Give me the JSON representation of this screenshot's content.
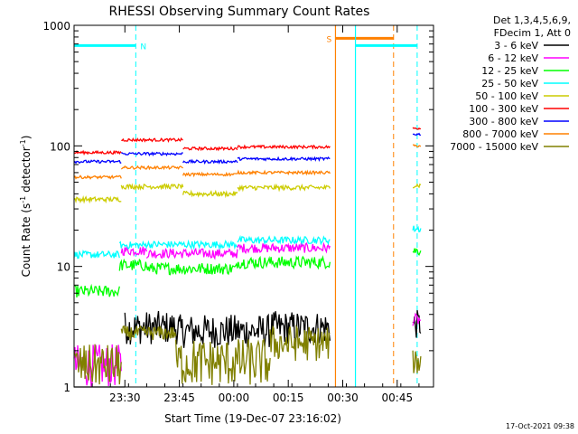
{
  "chart_data": {
    "type": "line",
    "title": "RHESSI Observing Summary Count Rates",
    "xlabel": "Start Time (19-Dec-07 23:16:02)",
    "ylabel_prefix": "Count Rate (s",
    "ylabel_sup1": "-1",
    "ylabel_mid": " detector",
    "ylabel_sup2": "-1",
    "ylabel_suffix": ")",
    "ylog": true,
    "ylim": [
      1,
      1000
    ],
    "xlim_minutes": [
      0,
      99
    ],
    "x_ticks": [
      {
        "min": 14,
        "label": "23:30"
      },
      {
        "min": 29,
        "label": "23:45"
      },
      {
        "min": 44,
        "label": "00:00"
      },
      {
        "min": 59,
        "label": "00:15"
      },
      {
        "min": 74,
        "label": "00:30"
      },
      {
        "min": 89,
        "label": "00:45"
      }
    ],
    "y_ticks": [
      {
        "v": 1,
        "label": "1"
      },
      {
        "v": 10,
        "label": "10"
      },
      {
        "v": 100,
        "label": "100"
      },
      {
        "v": 1000,
        "label": "1000"
      }
    ],
    "legend_header": [
      "Det 1,3,4,5,6,9,",
      "FDecim 1, Att 0"
    ],
    "series": [
      {
        "name": "3 - 6 keV",
        "color": "#000000",
        "segments": [
          {
            "x0": 0,
            "x1": 14,
            "y": 1,
            "noise": 0
          },
          {
            "x0": 14,
            "x1": 29,
            "y": 3.1,
            "noise": 0.14
          },
          {
            "x0": 29,
            "x1": 54,
            "y": 2.9,
            "noise": 0.14
          },
          {
            "x0": 54,
            "x1": 70.5,
            "y": 3.1,
            "noise": 0.14
          },
          {
            "x0": 93.3,
            "x1": 95.5,
            "y": 3.3,
            "noise": 0.12
          }
        ]
      },
      {
        "name": "6 - 12 keV",
        "color": "#ff00ff",
        "segments": [
          {
            "x0": 0,
            "x1": 13,
            "y": 1.5,
            "noise": 0.18
          },
          {
            "x0": 13,
            "x1": 20,
            "y": 13.5,
            "noise": 0.04
          },
          {
            "x0": 20,
            "x1": 45,
            "y": 12.8,
            "noise": 0.04
          },
          {
            "x0": 45,
            "x1": 70.5,
            "y": 14.2,
            "noise": 0.04
          },
          {
            "x0": 93.3,
            "x1": 95.5,
            "y": 3.6,
            "noise": 0.05
          }
        ]
      },
      {
        "name": "12 - 25 keV",
        "color": "#00ff00",
        "segments": [
          {
            "x0": 0,
            "x1": 12.5,
            "y": 6.2,
            "noise": 0.05
          },
          {
            "x0": 12.5,
            "x1": 20,
            "y": 10.2,
            "noise": 0.05
          },
          {
            "x0": 20,
            "x1": 45,
            "y": 9.6,
            "noise": 0.05
          },
          {
            "x0": 45,
            "x1": 70.5,
            "y": 10.8,
            "noise": 0.05
          },
          {
            "x0": 93.3,
            "x1": 95.5,
            "y": 13.5,
            "noise": 0.04
          }
        ]
      },
      {
        "name": "25 - 50 keV",
        "color": "#00ffff",
        "segments": [
          {
            "x0": 0,
            "x1": 12.5,
            "y": 12.5,
            "noise": 0.03
          },
          {
            "x0": 12.5,
            "x1": 20,
            "y": 15,
            "noise": 0.03
          },
          {
            "x0": 20,
            "x1": 45,
            "y": 15.2,
            "noise": 0.03
          },
          {
            "x0": 45,
            "x1": 70.5,
            "y": 16.5,
            "noise": 0.03
          },
          {
            "x0": 93.3,
            "x1": 95.5,
            "y": 20.5,
            "noise": 0.03
          }
        ]
      },
      {
        "name": "50 - 100 keV",
        "color": "#cccc00",
        "segments": [
          {
            "x0": 0,
            "x1": 13,
            "y": 36,
            "noise": 0.02
          },
          {
            "x0": 13,
            "x1": 30,
            "y": 46,
            "noise": 0.02
          },
          {
            "x0": 30,
            "x1": 45,
            "y": 40,
            "noise": 0.02
          },
          {
            "x0": 45,
            "x1": 70.5,
            "y": 45,
            "noise": 0.02
          },
          {
            "x0": 93.3,
            "x1": 95.5,
            "y": 47,
            "noise": 0.02
          }
        ]
      },
      {
        "name": "100 - 300 keV",
        "color": "#ff0000",
        "segments": [
          {
            "x0": 0,
            "x1": 13,
            "y": 88,
            "noise": 0.012
          },
          {
            "x0": 13,
            "x1": 30,
            "y": 112,
            "noise": 0.012
          },
          {
            "x0": 30,
            "x1": 45,
            "y": 95,
            "noise": 0.012
          },
          {
            "x0": 45,
            "x1": 70.5,
            "y": 98,
            "noise": 0.012
          },
          {
            "x0": 93.3,
            "x1": 95.5,
            "y": 140,
            "noise": 0.01
          }
        ]
      },
      {
        "name": "300 - 800 keV",
        "color": "#0000ff",
        "segments": [
          {
            "x0": 0,
            "x1": 13,
            "y": 74,
            "noise": 0.012
          },
          {
            "x0": 13,
            "x1": 30,
            "y": 86,
            "noise": 0.012
          },
          {
            "x0": 30,
            "x1": 45,
            "y": 74,
            "noise": 0.012
          },
          {
            "x0": 45,
            "x1": 70.5,
            "y": 78,
            "noise": 0.012
          },
          {
            "x0": 93.3,
            "x1": 95.5,
            "y": 125,
            "noise": 0.01
          }
        ]
      },
      {
        "name": "800 - 7000 keV",
        "color": "#ff8000",
        "segments": [
          {
            "x0": 0,
            "x1": 13,
            "y": 55,
            "noise": 0.012
          },
          {
            "x0": 13,
            "x1": 30,
            "y": 66,
            "noise": 0.012
          },
          {
            "x0": 30,
            "x1": 45,
            "y": 58,
            "noise": 0.012
          },
          {
            "x0": 45,
            "x1": 70.5,
            "y": 60,
            "noise": 0.012
          },
          {
            "x0": 93.3,
            "x1": 95.5,
            "y": 100,
            "noise": 0.01
          }
        ]
      },
      {
        "name": "7000 - 15000 keV",
        "color": "#808000",
        "segments": [
          {
            "x0": 0,
            "x1": 13,
            "y": 1.5,
            "noise": 0.18
          },
          {
            "x0": 13,
            "x1": 28,
            "y": 2.8,
            "noise": 0.06
          },
          {
            "x0": 28,
            "x1": 54,
            "y": 1.6,
            "noise": 0.2
          },
          {
            "x0": 54,
            "x1": 70.5,
            "y": 2.3,
            "noise": 0.15
          },
          {
            "x0": 93.3,
            "x1": 95.5,
            "y": 1.6,
            "noise": 0.1
          }
        ]
      }
    ],
    "markers": [
      {
        "label": "N",
        "color": "#00ffff",
        "x0": 0,
        "x1": 17,
        "level": 680,
        "dash_x": 17
      },
      {
        "label": "S",
        "color": "#ff8000",
        "x0": 72,
        "x1": 88,
        "level": 780,
        "dash_x": 88,
        "solid_x": 72
      },
      {
        "label": "",
        "color": "#00ffff",
        "x0": 77.5,
        "x1": 94.5,
        "level": 680,
        "dash_x": 94.5,
        "solid_x": 77.5
      }
    ],
    "footer_date": "17-Oct-2021 09:38"
  }
}
